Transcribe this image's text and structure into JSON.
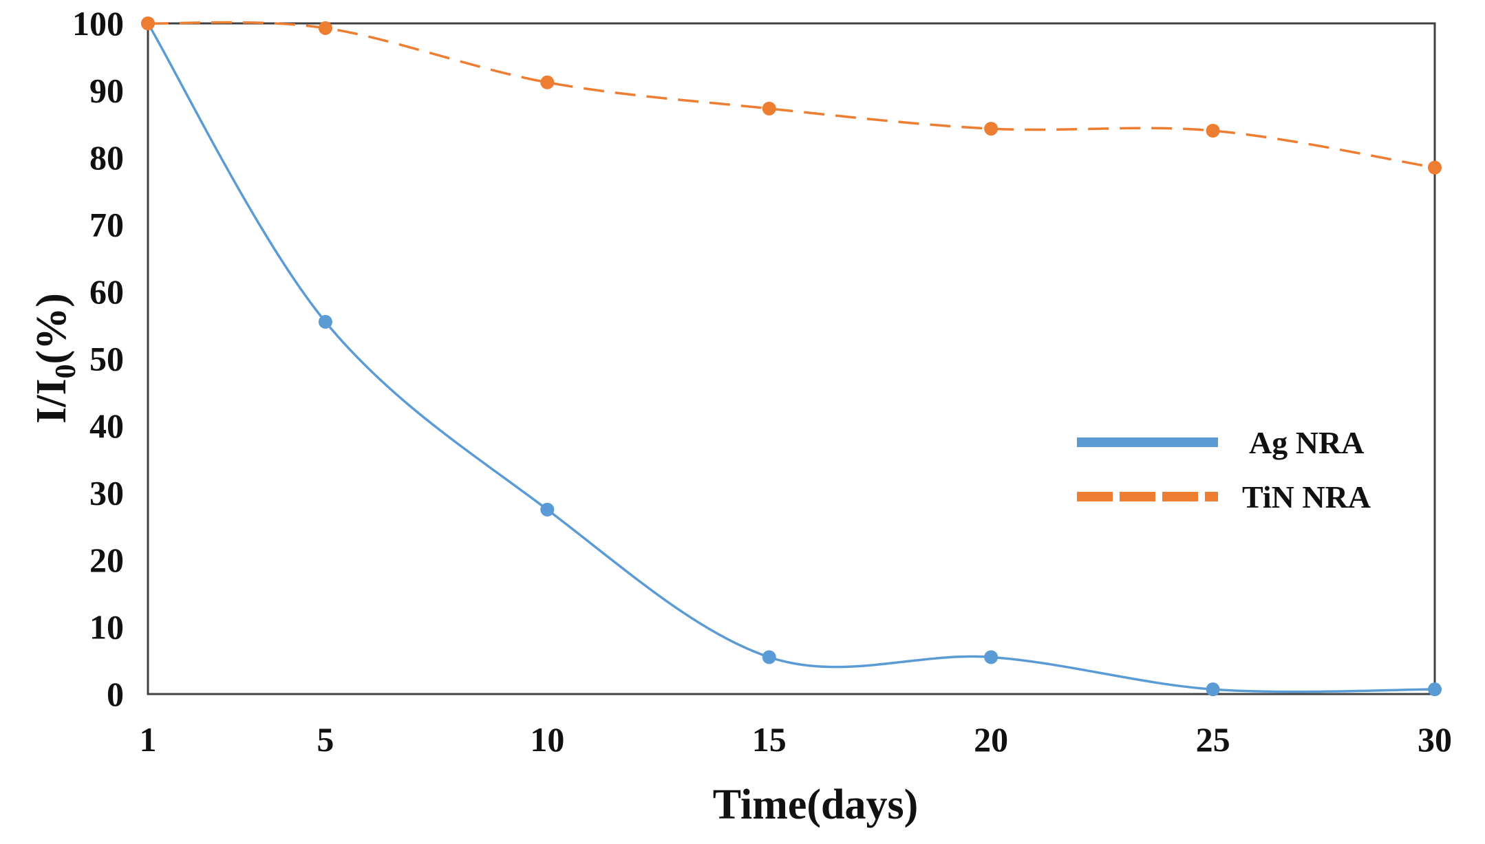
{
  "chart_data": {
    "type": "line",
    "title": "",
    "xlabel": "Time(days)",
    "ylabel": {
      "main": "I/I",
      "subscript": "0",
      "suffix": "(%)"
    },
    "x": [
      1,
      5,
      10,
      15,
      20,
      25,
      30
    ],
    "x_tick_labels": [
      "1",
      "5",
      "10",
      "15",
      "20",
      "25",
      "30"
    ],
    "y_tick_labels": [
      "0",
      "10",
      "20",
      "30",
      "40",
      "50",
      "60",
      "70",
      "80",
      "90",
      "100"
    ],
    "ylim": [
      0,
      100
    ],
    "grid": false,
    "legend_position": "center-right",
    "series": [
      {
        "name": "Ag NRA",
        "color": "#5B9BD5",
        "line_style": "solid",
        "smooth": true,
        "values": [
          100,
          55.5,
          27.5,
          5.5,
          5.5,
          0.7,
          0.7
        ]
      },
      {
        "name": "TiN NRA",
        "color": "#ED7D31",
        "line_style": "dashed",
        "smooth": true,
        "values": [
          100,
          99.3,
          91.2,
          87.3,
          84.3,
          84.0,
          78.5
        ]
      }
    ]
  }
}
